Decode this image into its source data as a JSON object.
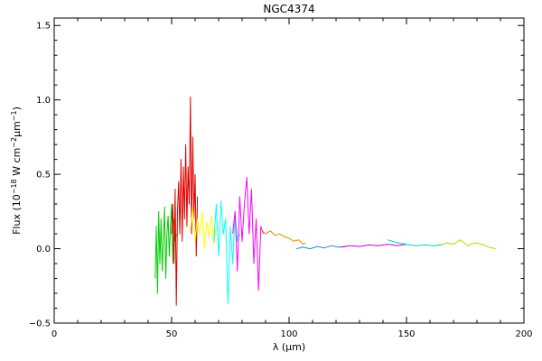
{
  "chart_data": {
    "type": "line",
    "title": "NGC4374",
    "xlabel": "λ (μm)",
    "ylabel_parts": {
      "prefix": "Flux (10",
      "exp1": "−18",
      "mid1": " W cm",
      "exp2": "−2",
      "mid2": "μm",
      "exp3": "−1",
      "suffix": ")"
    },
    "xlim": [
      0,
      200
    ],
    "ylim": [
      -0.5,
      1.55
    ],
    "x_ticks": [
      0,
      50,
      100,
      150,
      200
    ],
    "x_tick_labels": [
      "0",
      "50",
      "100",
      "150",
      "200"
    ],
    "y_ticks": [
      -0.5,
      0.0,
      0.5,
      1.0,
      1.5
    ],
    "y_tick_labels": [
      "−0.5",
      "0.0",
      "0.5",
      "1.0",
      "1.5"
    ],
    "grid": false,
    "series": [
      {
        "color": "#00cc00",
        "x": [
          43.0,
          43.5,
          44.0,
          44.5,
          45.0,
          45.5,
          46.0,
          46.5,
          47.0,
          47.5,
          48.0,
          48.5,
          49.0,
          49.5,
          50.0,
          50.5,
          51.0,
          51.5,
          52.0
        ],
        "y": [
          -0.2,
          0.15,
          -0.3,
          0.25,
          -0.1,
          0.2,
          -0.15,
          0.05,
          0.28,
          -0.2,
          0.1,
          0.22,
          -0.05,
          0.15,
          0.3,
          -0.1,
          0.2,
          0.05,
          0.1
        ]
      },
      {
        "color": "#dd0000",
        "x": [
          50.0,
          50.5,
          51.0,
          51.5,
          52.0,
          52.5,
          53.0,
          53.5,
          54.0,
          54.5,
          55.0,
          55.5,
          56.0,
          56.5,
          57.0,
          57.5,
          58.0,
          58.5,
          59.0,
          59.5,
          60.0,
          60.5,
          61.0
        ],
        "y": [
          0.1,
          0.3,
          -0.1,
          0.4,
          -0.38,
          0.25,
          0.45,
          0.1,
          0.6,
          0.05,
          0.55,
          0.2,
          0.7,
          0.15,
          0.55,
          0.3,
          1.02,
          0.1,
          0.75,
          0.2,
          0.5,
          -0.05,
          0.35
        ]
      },
      {
        "color": "#ffff00",
        "x": [
          58.0,
          59.0,
          60.0,
          61.0,
          62.0,
          63.0,
          64.0,
          65.0,
          66.0,
          67.0,
          68.0,
          69.0
        ],
        "y": [
          0.12,
          0.28,
          0.05,
          0.2,
          0.1,
          0.25,
          0.0,
          0.18,
          0.08,
          0.22,
          0.03,
          0.15
        ]
      },
      {
        "color": "#00ffff",
        "x": [
          68.0,
          69.0,
          70.0,
          71.0,
          72.0,
          73.0,
          74.0,
          75.0,
          76.0,
          77.0,
          78.0,
          79.0
        ],
        "y": [
          0.05,
          0.3,
          -0.05,
          0.32,
          0.1,
          0.2,
          -0.37,
          0.15,
          -0.1,
          0.25,
          0.05,
          0.1
        ]
      },
      {
        "color": "#ff00ff",
        "x": [
          76.0,
          77.0,
          78.0,
          79.0,
          80.0,
          81.0,
          82.0,
          83.0,
          84.0,
          85.0,
          86.0,
          87.0,
          88.0,
          89.0
        ],
        "y": [
          0.1,
          0.25,
          -0.15,
          0.35,
          0.05,
          0.3,
          0.48,
          0.1,
          0.4,
          -0.1,
          0.2,
          -0.28,
          0.15,
          0.1
        ]
      },
      {
        "color": "#e08a00",
        "x": [
          88.0,
          90.0,
          92.0,
          94.0,
          96.0,
          98.0,
          100.0,
          102.0,
          104.0,
          106.0,
          107.0
        ],
        "y": [
          0.13,
          0.1,
          0.12,
          0.09,
          0.1,
          0.08,
          0.07,
          0.05,
          0.06,
          0.03,
          0.04
        ]
      },
      {
        "color": "#1a8fd0",
        "x": [
          103.0,
          106.0,
          109.0,
          112.0,
          115.0,
          118.0,
          121.0,
          124.0
        ],
        "y": [
          0.0,
          0.01,
          0.0,
          0.015,
          0.005,
          0.02,
          0.01,
          0.015
        ]
      },
      {
        "color": "#cc00cc",
        "x": [
          122.0,
          126.0,
          130.0,
          134.0,
          138.0,
          142.0,
          146.0,
          150.0
        ],
        "y": [
          0.01,
          0.02,
          0.015,
          0.025,
          0.02,
          0.03,
          0.02,
          0.03
        ]
      },
      {
        "color": "#00d0c0",
        "x": [
          142.0,
          146.0,
          150.0,
          154.0,
          158.0,
          162.0,
          166.0
        ],
        "y": [
          0.06,
          0.04,
          0.03,
          0.02,
          0.025,
          0.02,
          0.03
        ]
      },
      {
        "color": "#cccc00",
        "x": [
          164.0,
          167.0,
          170.0,
          173.0,
          176.0,
          179.0,
          182.0,
          185.0,
          188.0
        ],
        "y": [
          0.02,
          0.04,
          0.03,
          0.06,
          0.02,
          0.04,
          0.03,
          0.01,
          0.0
        ]
      }
    ]
  }
}
